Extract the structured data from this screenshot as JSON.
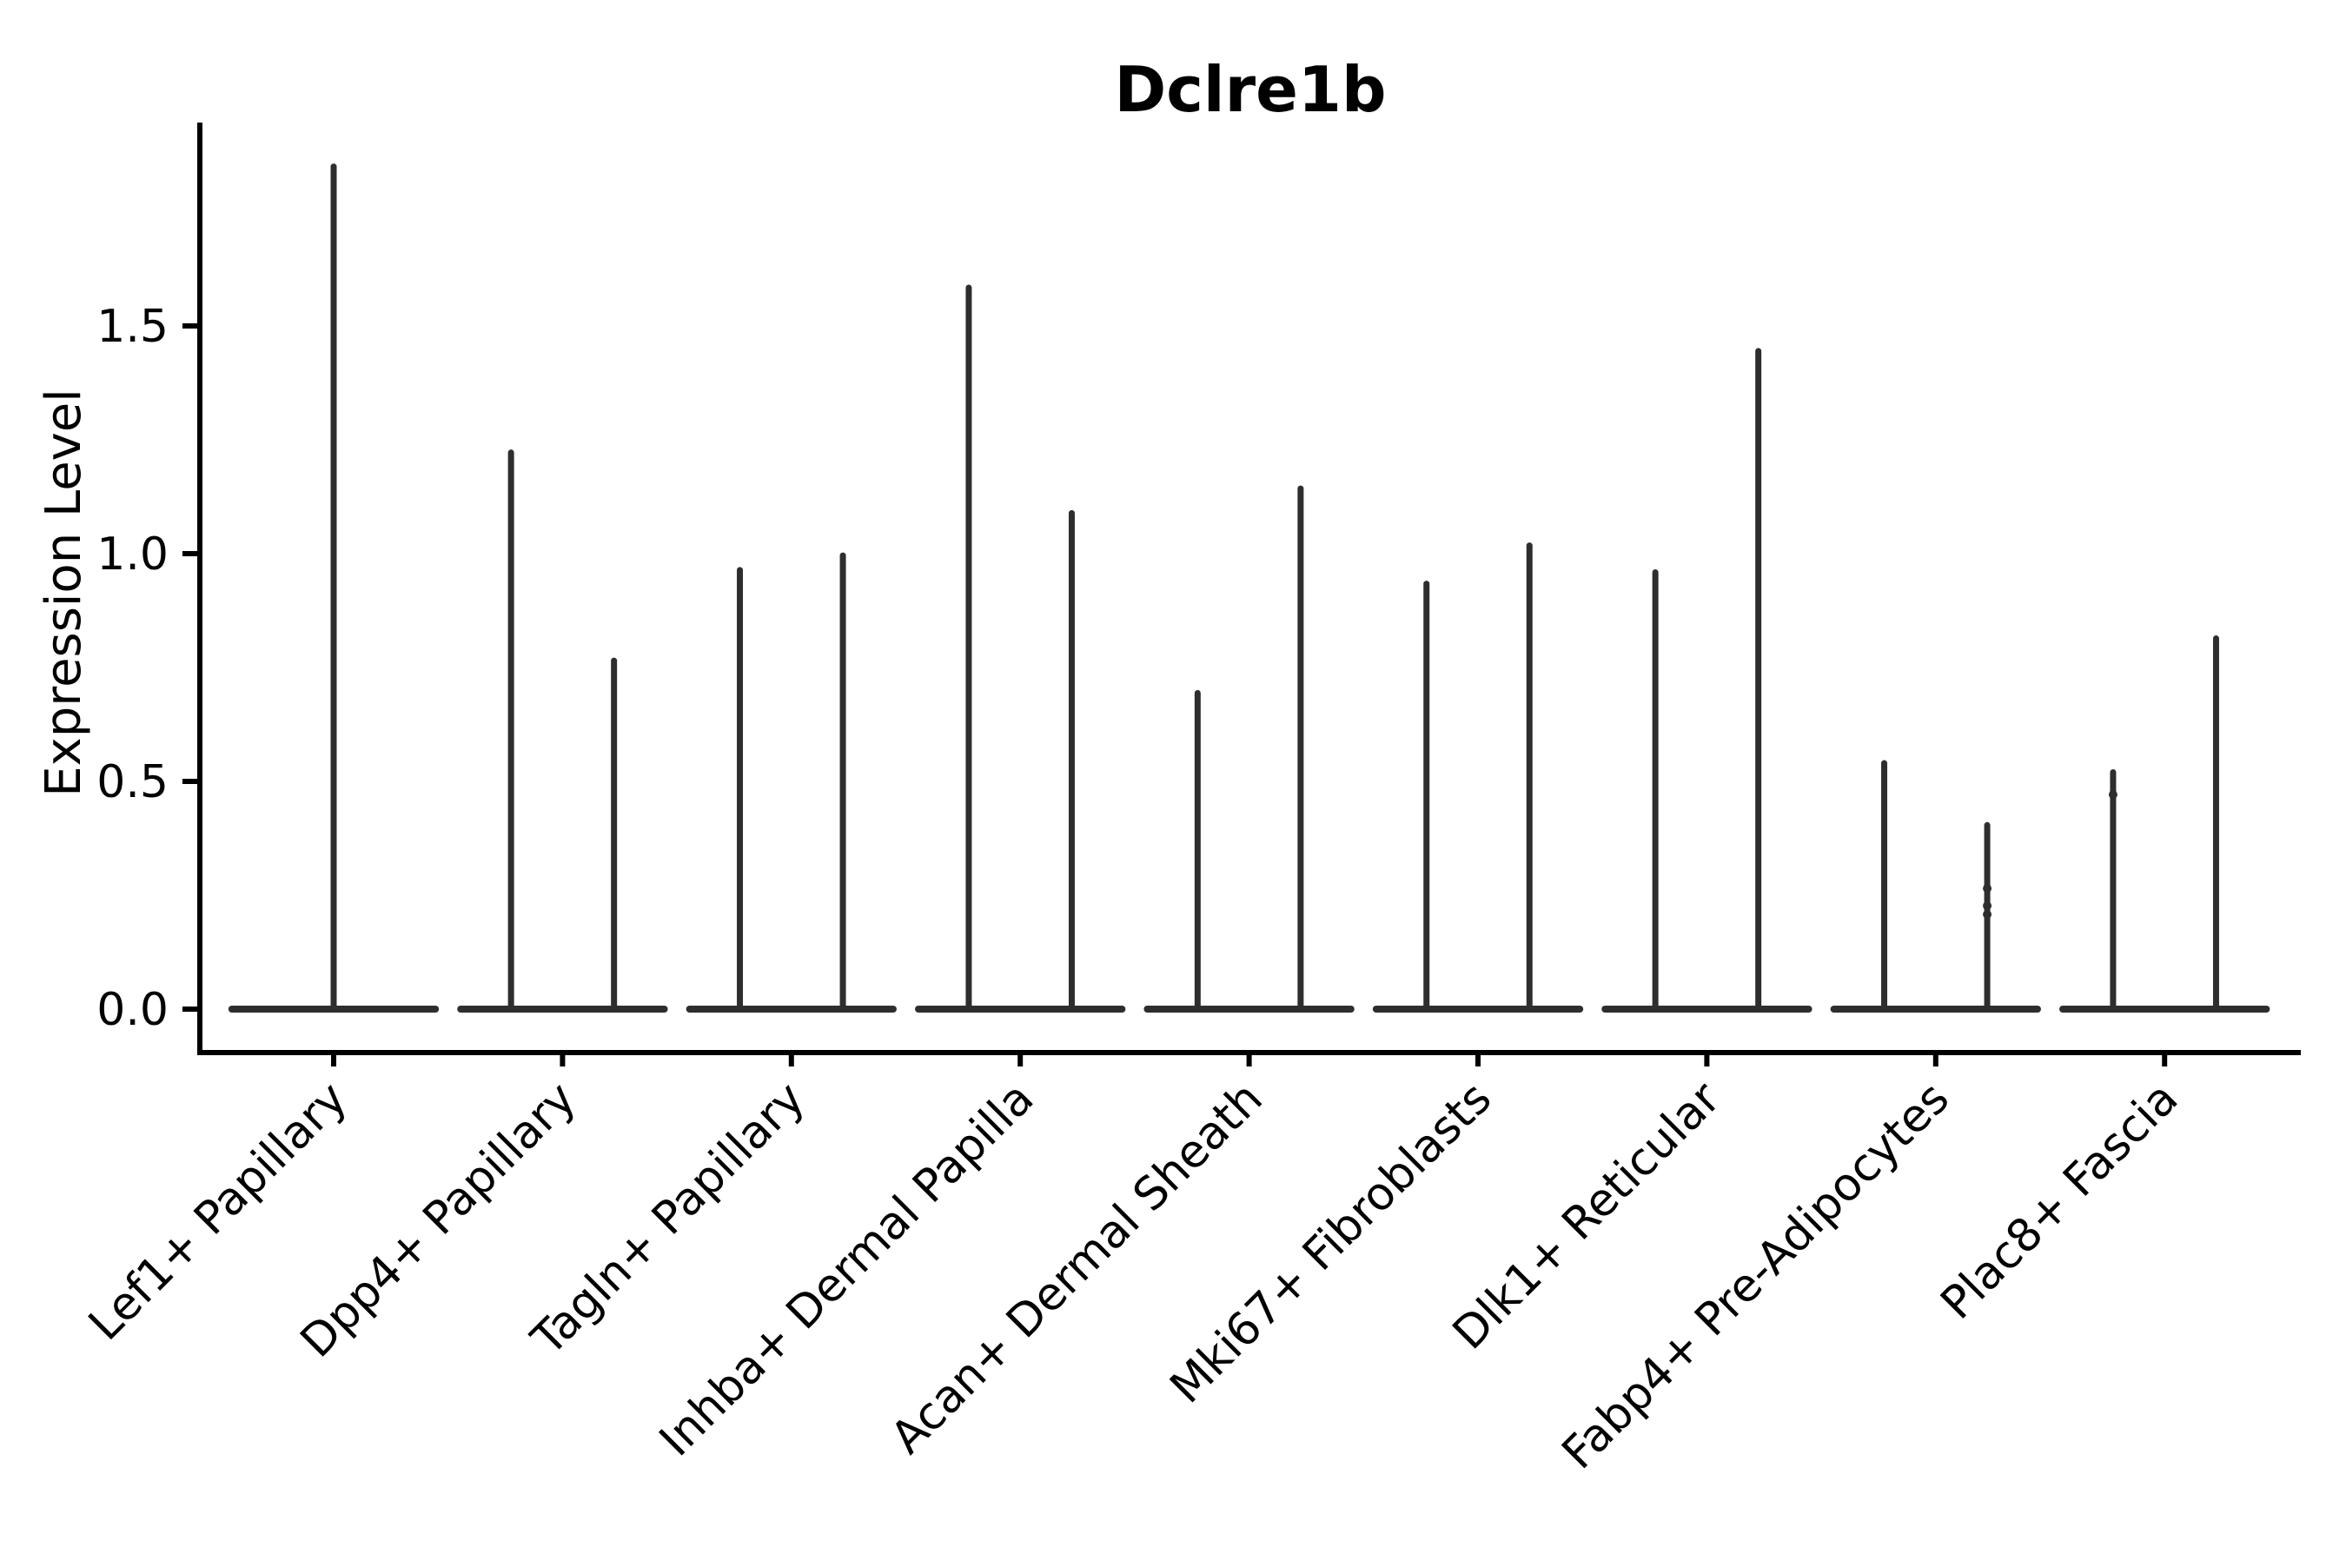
{
  "chart_data": {
    "type": "violin",
    "title": "Dclre1b",
    "ylabel": "Expression Level",
    "xlabel": "",
    "grid": false,
    "legend": "none",
    "yticks": [
      {
        "value": 0.0,
        "label": "0.0"
      },
      {
        "value": 0.5,
        "label": "0.5"
      },
      {
        "value": 1.0,
        "label": "1.0"
      },
      {
        "value": 1.5,
        "label": "1.5"
      }
    ],
    "ylim": [
      -0.095,
      1.947
    ],
    "base_half_width_units": 0.46,
    "violin_groups": [
      {
        "category": "Lef1+ Papillary",
        "violins": [
          {
            "offset": 0.0,
            "max": 1.85
          }
        ]
      },
      {
        "category": "Dpp4+ Papillary",
        "violins": [
          {
            "offset": -0.225,
            "max": 1.222
          },
          {
            "offset": 0.225,
            "max": 0.765
          }
        ]
      },
      {
        "category": "Tagln+ Papillary",
        "violins": [
          {
            "offset": -0.225,
            "max": 0.964
          },
          {
            "offset": 0.225,
            "max": 0.996
          }
        ]
      },
      {
        "category": "Inhba+ Dermal Papilla",
        "violins": [
          {
            "offset": -0.225,
            "max": 1.584
          },
          {
            "offset": 0.225,
            "max": 1.089
          }
        ]
      },
      {
        "category": "Acan+ Dermal Sheath",
        "violins": [
          {
            "offset": -0.225,
            "max": 0.694
          },
          {
            "offset": 0.225,
            "max": 1.143
          }
        ]
      },
      {
        "category": "Mki67+ Fibroblasts",
        "violins": [
          {
            "offset": -0.225,
            "max": 0.934
          },
          {
            "offset": 0.225,
            "max": 1.018
          }
        ]
      },
      {
        "category": "Dlk1+ Reticular",
        "violins": [
          {
            "offset": -0.225,
            "max": 0.959
          },
          {
            "offset": 0.225,
            "max": 1.445
          }
        ]
      },
      {
        "category": "Fabp4+ Pre-Adipocytes",
        "violins": [
          {
            "offset": -0.225,
            "max": 0.54
          },
          {
            "offset": 0.225,
            "max": 0.404
          }
        ]
      },
      {
        "category": "Plac8+ Fascia",
        "violins": [
          {
            "offset": -0.225,
            "max": 0.52
          },
          {
            "offset": 0.225,
            "max": 0.814
          }
        ]
      }
    ],
    "jitter_points": [
      {
        "category_index": 7,
        "offset": 0.225,
        "values": [
          0.265,
          0.227,
          0.208
        ]
      },
      {
        "category_index": 8,
        "offset": -0.225,
        "values": [
          0.471
        ]
      }
    ],
    "colors": {
      "violin": "#2e2e2e",
      "axis": "#000000",
      "text": "#000000",
      "background": "#ffffff"
    }
  }
}
